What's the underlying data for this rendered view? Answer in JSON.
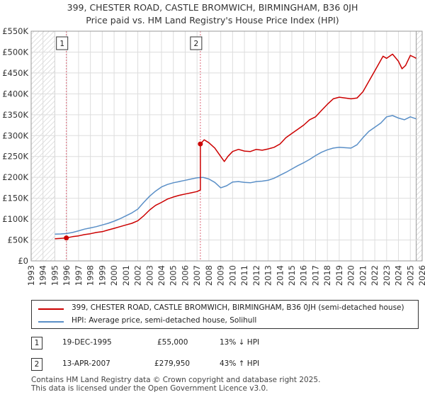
{
  "title_line1": "399, CHESTER ROAD, CASTLE BROMWICH, BIRMINGHAM, B36 0JH",
  "title_line2": "Price paid vs. HM Land Registry's House Price Index (HPI)",
  "chart_data": {
    "type": "line",
    "title": "399, CHESTER ROAD, CASTLE BROMWICH, BIRMINGHAM, B36 0JH - Price paid vs. HM Land Registry's House Price Index (HPI)",
    "xlabel": "",
    "ylabel": "",
    "xlim": [
      1993,
      2026
    ],
    "ylim": [
      0,
      550000
    ],
    "x_ticks": [
      "1993",
      "1994",
      "1995",
      "1996",
      "1997",
      "1998",
      "1999",
      "2000",
      "2001",
      "2002",
      "2003",
      "2004",
      "2005",
      "2006",
      "2007",
      "2008",
      "2009",
      "2010",
      "2011",
      "2012",
      "2013",
      "2014",
      "2015",
      "2016",
      "2017",
      "2018",
      "2019",
      "2020",
      "2021",
      "2022",
      "2023",
      "2024",
      "2025",
      "2026"
    ],
    "y_ticks": [
      {
        "value": 0,
        "label": "£0"
      },
      {
        "value": 50000,
        "label": "£50K"
      },
      {
        "value": 100000,
        "label": "£100K"
      },
      {
        "value": 150000,
        "label": "£150K"
      },
      {
        "value": 200000,
        "label": "£200K"
      },
      {
        "value": 250000,
        "label": "£250K"
      },
      {
        "value": 300000,
        "label": "£300K"
      },
      {
        "value": 350000,
        "label": "£350K"
      },
      {
        "value": 400000,
        "label": "£400K"
      },
      {
        "value": 450000,
        "label": "£450K"
      },
      {
        "value": 500000,
        "label": "£500K"
      },
      {
        "value": 550000,
        "label": "£550K"
      }
    ],
    "data_range": [
      1995.0,
      2025.5
    ],
    "series": [
      {
        "name": "399, CHESTER ROAD, CASTLE BROMWICH, BIRMINGHAM, B36 0JH (semi-detached house)",
        "color": "#cc0000",
        "x": [
          1995.0,
          1995.5,
          1995.97,
          1996.5,
          1997.0,
          1997.5,
          1998.0,
          1998.5,
          1999.0,
          1999.5,
          2000.0,
          2000.5,
          2001.0,
          2001.5,
          2002.0,
          2002.5,
          2003.0,
          2003.5,
          2004.0,
          2004.5,
          2005.0,
          2005.5,
          2006.0,
          2006.5,
          2007.0,
          2007.28,
          2007.28,
          2007.6,
          2008.0,
          2008.5,
          2009.0,
          2009.3,
          2009.6,
          2010.0,
          2010.5,
          2011.0,
          2011.5,
          2012.0,
          2012.5,
          2013.0,
          2013.5,
          2014.0,
          2014.5,
          2015.0,
          2015.5,
          2016.0,
          2016.5,
          2017.0,
          2017.5,
          2018.0,
          2018.5,
          2019.0,
          2019.5,
          2020.0,
          2020.5,
          2021.0,
          2021.5,
          2022.0,
          2022.3,
          2022.7,
          2023.0,
          2023.5,
          2024.0,
          2024.3,
          2024.6,
          2025.0,
          2025.3,
          2025.5
        ],
        "values": [
          53000,
          54000,
          55000,
          58000,
          60000,
          63000,
          65000,
          68000,
          70000,
          74000,
          78000,
          82000,
          86000,
          90000,
          96000,
          108000,
          122000,
          133000,
          140000,
          148000,
          153000,
          157000,
          160000,
          163000,
          166000,
          170000,
          279950,
          290000,
          283000,
          270000,
          250000,
          238000,
          250000,
          262000,
          267000,
          263000,
          262000,
          267000,
          265000,
          268000,
          272000,
          280000,
          295000,
          305000,
          315000,
          325000,
          338000,
          345000,
          360000,
          375000,
          388000,
          392000,
          390000,
          388000,
          390000,
          405000,
          430000,
          455000,
          470000,
          490000,
          485000,
          495000,
          478000,
          460000,
          468000,
          492000,
          488000,
          485000
        ]
      },
      {
        "name": "HPI: Average price, semi-detached house, Solihull",
        "color": "#5a8fc7",
        "x": [
          1995.0,
          1995.5,
          1996.0,
          1996.5,
          1997.0,
          1997.5,
          1998.0,
          1998.5,
          1999.0,
          1999.5,
          2000.0,
          2000.5,
          2001.0,
          2001.5,
          2002.0,
          2002.5,
          2003.0,
          2003.5,
          2004.0,
          2004.5,
          2005.0,
          2005.5,
          2006.0,
          2006.5,
          2007.0,
          2007.5,
          2008.0,
          2008.5,
          2009.0,
          2009.5,
          2010.0,
          2010.5,
          2011.0,
          2011.5,
          2012.0,
          2012.5,
          2013.0,
          2013.5,
          2014.0,
          2014.5,
          2015.0,
          2015.5,
          2016.0,
          2016.5,
          2017.0,
          2017.5,
          2018.0,
          2018.5,
          2019.0,
          2019.5,
          2020.0,
          2020.5,
          2021.0,
          2021.5,
          2022.0,
          2022.5,
          2023.0,
          2023.5,
          2024.0,
          2024.5,
          2025.0,
          2025.5
        ],
        "values": [
          64000,
          64500,
          65500,
          68000,
          72000,
          76000,
          79000,
          82000,
          86000,
          90000,
          95000,
          101000,
          108000,
          115000,
          124000,
          140000,
          155000,
          167000,
          177000,
          183000,
          187000,
          190000,
          193000,
          196000,
          199000,
          200000,
          196000,
          188000,
          175000,
          180000,
          189000,
          190000,
          188000,
          187000,
          190000,
          191000,
          193000,
          198000,
          205000,
          212000,
          220000,
          228000,
          235000,
          243000,
          252000,
          260000,
          266000,
          270000,
          272000,
          271000,
          270000,
          278000,
          295000,
          310000,
          320000,
          330000,
          345000,
          348000,
          342000,
          338000,
          345000,
          340000
        ]
      }
    ],
    "sales": [
      {
        "id": "1",
        "x": 1995.97,
        "value": 55000
      },
      {
        "id": "2",
        "x": 2007.28,
        "value": 279950
      }
    ],
    "legend": "bottom"
  },
  "legend": {
    "property_label": "399, CHESTER ROAD, CASTLE BROMWICH, BIRMINGHAM, B36 0JH (semi-detached house)",
    "hpi_label": "HPI: Average price, semi-detached house, Solihull"
  },
  "transactions": [
    {
      "id": "1",
      "date": "19-DEC-1995",
      "price": "£55,000",
      "hpi": "13% ↓ HPI"
    },
    {
      "id": "2",
      "date": "13-APR-2007",
      "price": "£279,950",
      "hpi": "43% ↑ HPI"
    }
  ],
  "footer_line1": "Contains HM Land Registry data © Crown copyright and database right 2025.",
  "footer_line2": "This data is licensed under the Open Government Licence v3.0.",
  "colors": {
    "property": "#cc0000",
    "hpi": "#5a8fc7",
    "grid": "#dddddd",
    "hatch": "#cccccc",
    "vline": "#dd6677"
  }
}
